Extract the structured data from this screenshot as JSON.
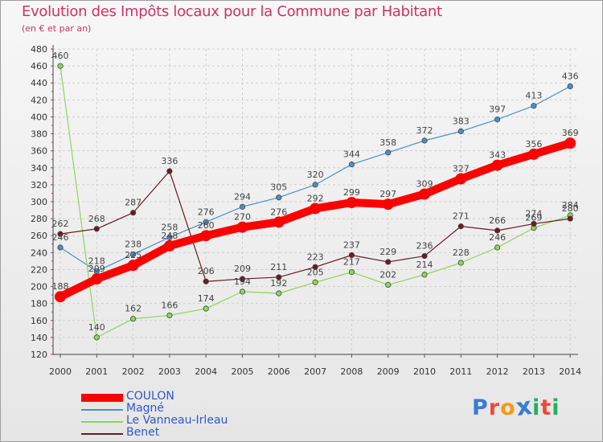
{
  "title": "Evolution des Impôts locaux pour la Commune par Habitant",
  "subtitle": "(en € et par an)",
  "logo": {
    "text": "ProXiti",
    "letters": [
      "P",
      "r",
      "o",
      "x",
      "i",
      "t",
      "i"
    ],
    "colors": [
      "#3a7bd5",
      "#e84c3d",
      "#f39c12",
      "#3a7bd5",
      "#27ae60",
      "#e84c3d",
      "#27ae60"
    ]
  },
  "chart_data": {
    "type": "line",
    "x": [
      "2000",
      "2001",
      "2002",
      "2003",
      "2004",
      "2005",
      "2006",
      "2007",
      "2008",
      "2009",
      "2010",
      "2011",
      "2012",
      "2013",
      "2014"
    ],
    "ylim": [
      120,
      480
    ],
    "yticks": [
      120,
      140,
      160,
      180,
      200,
      220,
      240,
      260,
      280,
      300,
      320,
      340,
      360,
      380,
      400,
      420,
      440,
      460,
      480
    ],
    "grid": true,
    "legend_position": "bottom-left",
    "series": [
      {
        "name": "COULON",
        "color": "#ff0000",
        "values": [
          188,
          209,
          225,
          248,
          260,
          270,
          276,
          292,
          299,
          297,
          309,
          327,
          343,
          356,
          369
        ]
      },
      {
        "name": "Magné",
        "color": "#4a90c8",
        "values": [
          246,
          218,
          238,
          258,
          276,
          294,
          305,
          320,
          344,
          358,
          372,
          383,
          397,
          413,
          436
        ]
      },
      {
        "name": "Le Vanneau-Irleau",
        "color": "#8fd45a",
        "values": [
          460,
          140,
          162,
          166,
          174,
          194,
          192,
          205,
          217,
          202,
          214,
          228,
          246,
          269,
          284
        ]
      },
      {
        "name": "Benet",
        "color": "#6b1a22",
        "values": [
          262,
          268,
          287,
          336,
          206,
          209,
          211,
          223,
          237,
          229,
          236,
          271,
          266,
          274,
          280
        ]
      }
    ]
  }
}
